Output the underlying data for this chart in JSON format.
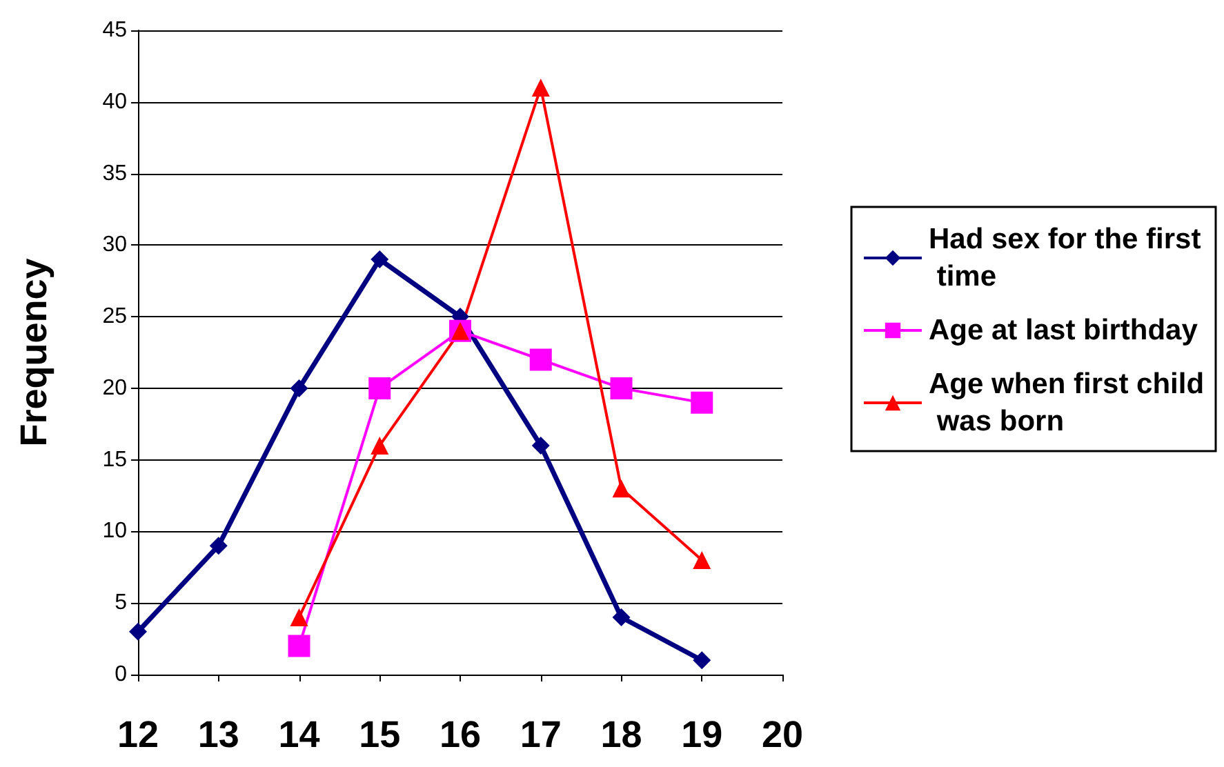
{
  "chart_data": {
    "type": "line",
    "ylabel": "Frequency",
    "xlim": [
      12,
      20
    ],
    "xticks": [
      12,
      13,
      14,
      15,
      16,
      17,
      18,
      19,
      20
    ],
    "ylim": [
      0,
      45
    ],
    "yticks": [
      0,
      5,
      10,
      15,
      20,
      25,
      30,
      35,
      40,
      45
    ],
    "grid": "y",
    "legend": "right",
    "line_style": "solid",
    "series": [
      {
        "name": "Had sex for the first time",
        "color": "#000080",
        "marker": "diamond",
        "x": [
          12,
          13,
          14,
          15,
          16,
          17,
          18,
          19
        ],
        "values": [
          3,
          9,
          20,
          29,
          25,
          16,
          4,
          1
        ]
      },
      {
        "name": "Age at last birthday",
        "color": "#ff00ff",
        "marker": "square",
        "x": [
          14,
          15,
          16,
          17,
          18,
          19
        ],
        "values": [
          2,
          20,
          24,
          22,
          20,
          19
        ]
      },
      {
        "name": "Age when first child was born",
        "color": "#ff0000",
        "marker": "triangle",
        "x": [
          14,
          15,
          16,
          17,
          18,
          19
        ],
        "values": [
          4,
          16,
          24,
          41,
          13,
          8
        ]
      }
    ]
  }
}
